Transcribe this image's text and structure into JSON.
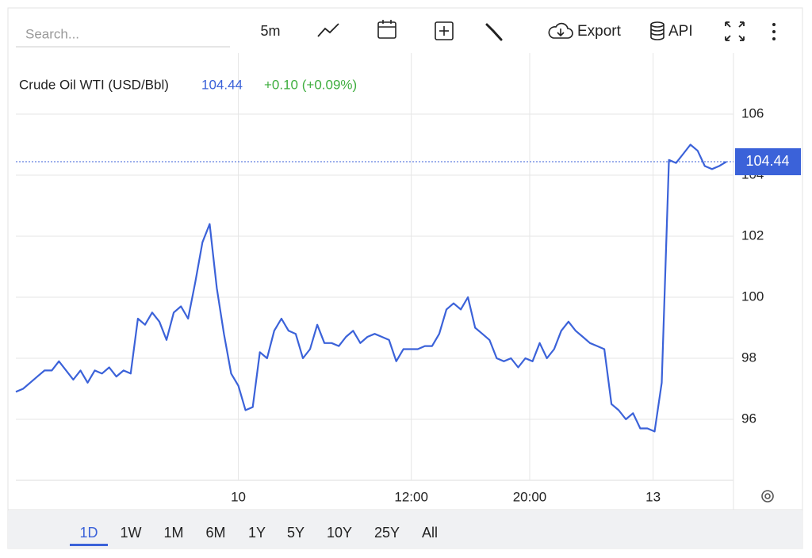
{
  "toolbar": {
    "search_placeholder": "Search...",
    "interval": "5m",
    "export": "Export",
    "api": "API"
  },
  "ranges": [
    "1D",
    "1W",
    "1M",
    "6M",
    "1Y",
    "5Y",
    "10Y",
    "25Y",
    "All"
  ],
  "active_range": "1D",
  "chart_data": {
    "type": "line",
    "change": "+0.10 (+0.09%)",
    "last_value": 104.44,
    "x": [
      0,
      1,
      2,
      3,
      4,
      5,
      6,
      7,
      8,
      9,
      10,
      11,
      12,
      13,
      14,
      15,
      16,
      17,
      18,
      19,
      20,
      21,
      22,
      23,
      24,
      25,
      26,
      27,
      28,
      29,
      30,
      31,
      32,
      33,
      34,
      35,
      36,
      37,
      38,
      39,
      40,
      41,
      42,
      43,
      44,
      45,
      46,
      47,
      48,
      49,
      50,
      51,
      52,
      53,
      54,
      55,
      56,
      57,
      58,
      59,
      60,
      61,
      62,
      63,
      64,
      65,
      66,
      67,
      68,
      69,
      70,
      71,
      72,
      73,
      74,
      75,
      76,
      77,
      78,
      79,
      80,
      81,
      82,
      83,
      84,
      85,
      86,
      87,
      88,
      89,
      90,
      91,
      92,
      93,
      94,
      95,
      96,
      97,
      98,
      99
    ],
    "series": [
      {
        "name": "Crude Oil WTI (USD/Bbl)",
        "color": "#3b62d9",
        "values": [
          96.9,
          97.0,
          97.2,
          97.4,
          97.6,
          97.6,
          97.9,
          97.6,
          97.3,
          97.6,
          97.2,
          97.6,
          97.5,
          97.7,
          97.4,
          97.6,
          97.5,
          99.3,
          99.1,
          99.5,
          99.2,
          98.6,
          99.5,
          99.7,
          99.3,
          100.5,
          101.8,
          102.4,
          100.3,
          98.8,
          97.5,
          97.1,
          96.3,
          96.4,
          98.2,
          98.0,
          98.9,
          99.3,
          98.9,
          98.8,
          98.0,
          98.3,
          99.1,
          98.5,
          98.5,
          98.4,
          98.7,
          98.9,
          98.5,
          98.7,
          98.8,
          98.7,
          98.6,
          97.9,
          98.3,
          98.3,
          98.3,
          98.4,
          98.4,
          98.8,
          99.6,
          99.8,
          99.6,
          100.0,
          99.0,
          98.8,
          98.6,
          98.0,
          97.9,
          98.0,
          97.7,
          98.0,
          97.9,
          98.5,
          98.0,
          98.3,
          98.9,
          99.2,
          98.9,
          98.7,
          98.5,
          98.4,
          98.3,
          96.5,
          96.3,
          96.0,
          96.2,
          95.7,
          95.7,
          95.6,
          97.2,
          104.5,
          104.4,
          104.7,
          105.0,
          104.8,
          104.3,
          104.2,
          104.3,
          104.44
        ]
      }
    ],
    "xlim": [
      0,
      100
    ],
    "xticks": [
      {
        "value": 31,
        "label": "10"
      },
      {
        "value": 55.1,
        "label": "12:00"
      },
      {
        "value": 71.6,
        "label": "20:00"
      },
      {
        "value": 88.8,
        "label": "13"
      }
    ],
    "ylim": [
      94,
      108
    ],
    "yticks": [
      96,
      98,
      100,
      102,
      104,
      106
    ],
    "grid": true
  }
}
